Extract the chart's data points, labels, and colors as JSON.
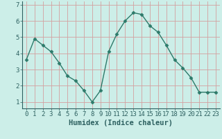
{
  "x": [
    0,
    1,
    2,
    3,
    4,
    5,
    6,
    7,
    8,
    9,
    10,
    11,
    12,
    13,
    14,
    15,
    16,
    17,
    18,
    19,
    20,
    21,
    22,
    23
  ],
  "y": [
    3.6,
    4.9,
    4.5,
    4.1,
    3.4,
    2.6,
    2.3,
    1.7,
    1.0,
    1.7,
    4.1,
    5.2,
    6.0,
    6.5,
    6.4,
    5.7,
    5.3,
    4.5,
    3.6,
    3.1,
    2.5,
    1.6,
    1.6,
    1.6
  ],
  "line_color": "#2d7a6a",
  "marker": "D",
  "marker_size": 2.5,
  "bg_color": "#cceee8",
  "grid_color_major": "#d4a0a0",
  "grid_color_minor": "#d4a0a0",
  "axis_color": "#2d6060",
  "xlabel": "Humidex (Indice chaleur)",
  "xlabel_fontsize": 7.5,
  "tick_fontsize": 6.5,
  "ylim": [
    0.6,
    7.2
  ],
  "xlim": [
    -0.5,
    23.5
  ],
  "yticks": [
    1,
    2,
    3,
    4,
    5,
    6,
    7
  ],
  "xticks": [
    0,
    1,
    2,
    3,
    4,
    5,
    6,
    7,
    8,
    9,
    10,
    11,
    12,
    13,
    14,
    15,
    16,
    17,
    18,
    19,
    20,
    21,
    22,
    23
  ]
}
